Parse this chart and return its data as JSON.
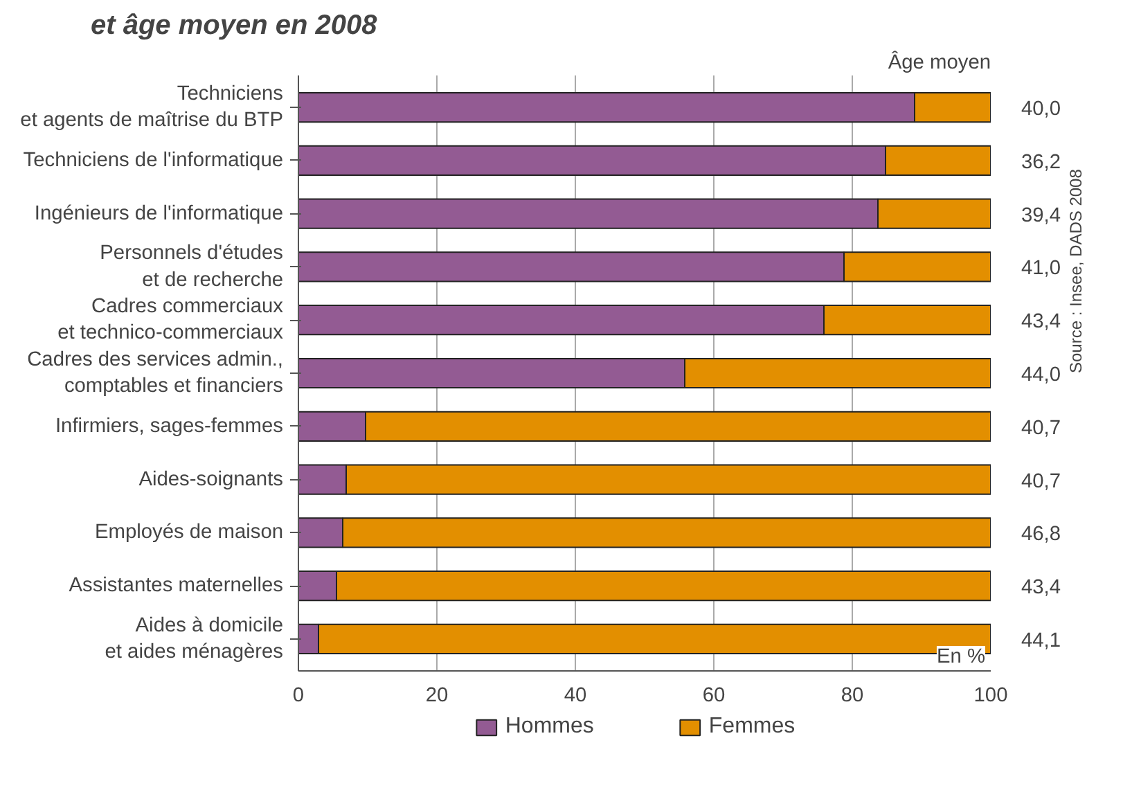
{
  "chart_data": {
    "type": "bar",
    "orientation": "horizontal",
    "stacked": true,
    "title": "et âge moyen en 2008",
    "categories": [
      "Techniciens\net agents de maîtrise du BTP",
      "Techniciens de l'informatique",
      "Ingénieurs de l'informatique",
      "Personnels d'études\net de recherche",
      "Cadres commerciaux\net technico-commerciaux",
      "Cadres des services admin.,\ncomptables et financiers",
      "Infirmiers, sages-femmes",
      "Aides-soignants",
      "Employés de maison",
      "Assistantes maternelles",
      "Aides à domicile\net aides ménagères"
    ],
    "series": [
      {
        "name": "Hommes",
        "color": "#935b93",
        "values": [
          89.0,
          84.8,
          83.7,
          78.8,
          75.9,
          55.8,
          9.7,
          6.9,
          6.4,
          5.5,
          2.9
        ]
      },
      {
        "name": "Femmes",
        "color": "#e38f00",
        "values": [
          11.0,
          15.2,
          16.3,
          21.2,
          24.1,
          44.2,
          90.3,
          93.1,
          93.6,
          94.5,
          97.1
        ]
      }
    ],
    "xlim": [
      0,
      100
    ],
    "xticks": [
      0,
      20,
      40,
      60,
      80,
      100
    ],
    "grid": "x",
    "legend": "bottom",
    "annotations": [
      "Âge moyen",
      "En %",
      "Source : Insee, DADS 2008",
      "40,0",
      "36,2",
      "39,4",
      "41,0",
      "43,4",
      "44,0",
      "40,7",
      "40,7",
      "46,8",
      "43,4",
      "44,1"
    ]
  }
}
